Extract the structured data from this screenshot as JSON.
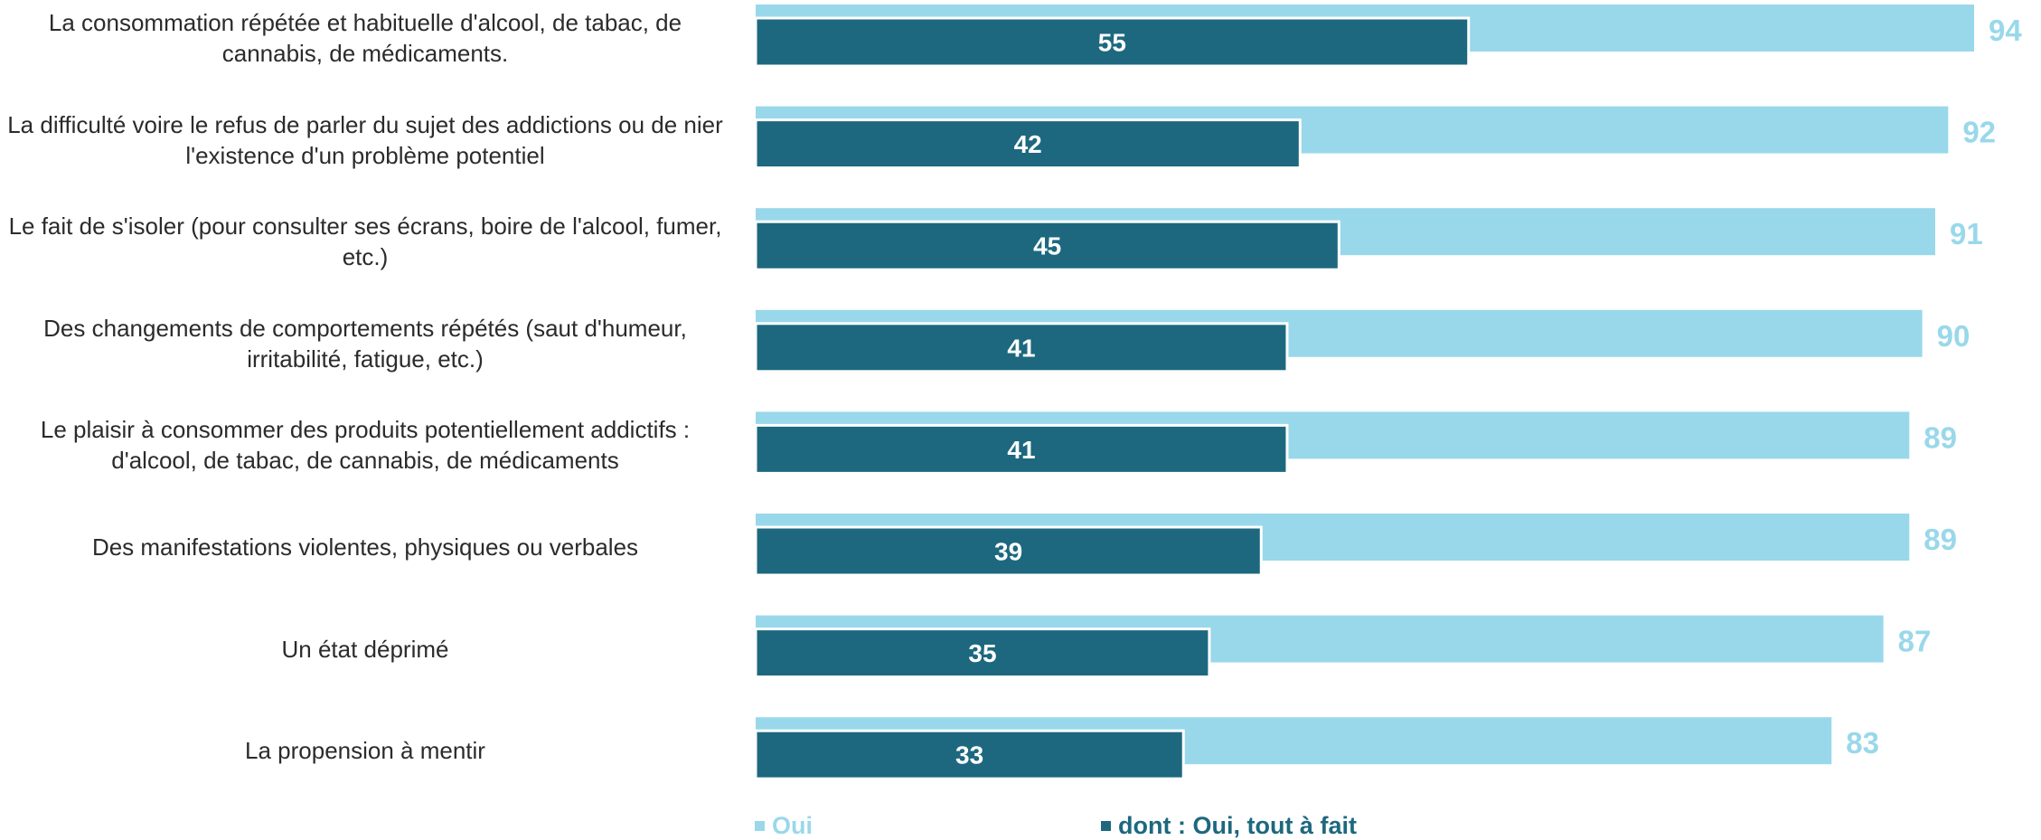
{
  "chart_data": {
    "type": "bar",
    "orientation": "horizontal",
    "categories": [
      "La consommation répétée et habituelle d'alcool, de tabac, de cannabis, de médicaments.",
      "La difficulté voire le refus de parler du sujet des addictions ou de nier l'existence d'un problème potentiel",
      "Le fait de s'isoler (pour consulter ses écrans, boire de l'alcool, fumer, etc.)",
      "Des changements de comportements répétés (saut d'humeur, irritabilité, fatigue, etc.)",
      "Le plaisir à consommer des produits potentiellement addictifs : d'alcool, de tabac, de cannabis, de médicaments",
      "Des manifestations violentes, physiques ou verbales",
      "Un état déprimé",
      "La propension à mentir"
    ],
    "series": [
      {
        "name": "Oui",
        "values": [
          94,
          92,
          91,
          90,
          89,
          89,
          87,
          83
        ],
        "color": "#99d8ea"
      },
      {
        "name": "dont : Oui, tout à fait",
        "values": [
          55,
          42,
          45,
          41,
          41,
          39,
          35,
          33
        ],
        "color": "#1d687f"
      }
    ],
    "xlim": [
      0,
      94
    ],
    "grid": false,
    "legend_position": "bottom"
  },
  "legend": {
    "oui_label": "Oui",
    "tout_a_fait_label": "dont : Oui, tout à fait"
  }
}
